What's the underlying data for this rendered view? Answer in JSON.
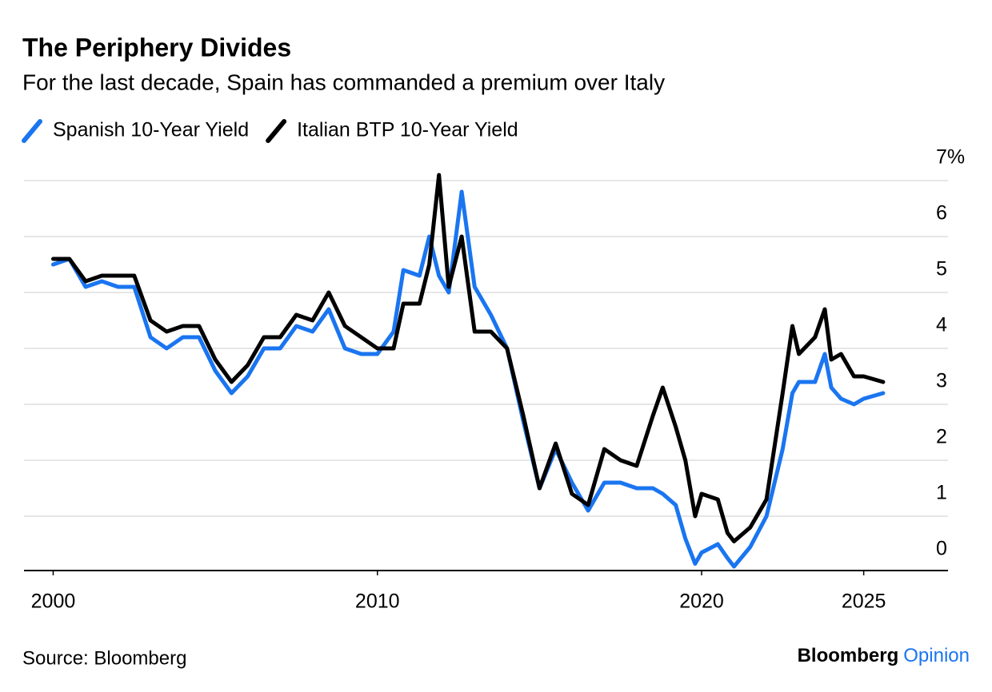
{
  "chart_data": {
    "type": "line",
    "title": "The Periphery Divides",
    "subtitle": "For the last decade, Spain has commanded a premium over Italy",
    "source": "Source: Bloomberg",
    "brand": [
      "Bloomberg",
      "Opinion"
    ],
    "x": [
      2000,
      2000.5,
      2001,
      2001.5,
      2002,
      2002.5,
      2003,
      2003.5,
      2004,
      2004.5,
      2005,
      2005.5,
      2006,
      2006.5,
      2007,
      2007.5,
      2008,
      2008.5,
      2009,
      2009.5,
      2010,
      2010.5,
      2010.8,
      2011.3,
      2011.6,
      2011.9,
      2012.2,
      2012.6,
      2013,
      2013.5,
      2014,
      2014.5,
      2015,
      2015.5,
      2016,
      2016.5,
      2017,
      2017.5,
      2018,
      2018.5,
      2018.8,
      2019.2,
      2019.5,
      2019.8,
      2020,
      2020.5,
      2020.8,
      2021,
      2021.5,
      2022,
      2022.5,
      2022.8,
      2023,
      2023.5,
      2023.8,
      2024,
      2024.3,
      2024.7,
      2025,
      2025.6
    ],
    "series": [
      {
        "name": "Spanish 10-Year Yield",
        "color": "#1a75f0",
        "values": [
          5.5,
          5.6,
          5.1,
          5.2,
          5.1,
          5.1,
          4.2,
          4.0,
          4.2,
          4.2,
          3.6,
          3.2,
          3.5,
          4.0,
          4.0,
          4.4,
          4.3,
          4.7,
          4.0,
          3.9,
          3.9,
          4.3,
          5.4,
          5.3,
          6.0,
          5.3,
          5.0,
          6.8,
          5.1,
          4.6,
          4.0,
          2.7,
          1.5,
          2.2,
          1.6,
          1.1,
          1.6,
          1.6,
          1.5,
          1.5,
          1.4,
          1.2,
          0.6,
          0.15,
          0.35,
          0.5,
          0.25,
          0.1,
          0.45,
          1.0,
          2.2,
          3.2,
          3.4,
          3.4,
          3.9,
          3.3,
          3.1,
          3.0,
          3.1,
          3.2
        ]
      },
      {
        "name": "Italian BTP 10-Year Yield",
        "color": "#000000",
        "values": [
          5.6,
          5.6,
          5.2,
          5.3,
          5.3,
          5.3,
          4.5,
          4.3,
          4.4,
          4.4,
          3.8,
          3.4,
          3.7,
          4.2,
          4.2,
          4.6,
          4.5,
          5.0,
          4.4,
          4.2,
          4.0,
          4.0,
          4.8,
          4.8,
          5.5,
          7.1,
          5.1,
          6.0,
          4.3,
          4.3,
          4.0,
          2.8,
          1.5,
          2.3,
          1.4,
          1.2,
          2.2,
          2.0,
          1.9,
          2.8,
          3.3,
          2.6,
          2.0,
          1.0,
          1.4,
          1.3,
          0.7,
          0.55,
          0.8,
          1.3,
          3.2,
          4.4,
          3.9,
          4.2,
          4.7,
          3.8,
          3.9,
          3.5,
          3.5,
          3.4
        ]
      }
    ],
    "xlim": [
      1999.1,
      2027.6
    ],
    "xticks": [
      2000,
      2010,
      2020,
      2025
    ],
    "ylim": [
      0,
      7
    ],
    "yticks": [
      0,
      1,
      2,
      3,
      4,
      5,
      6,
      {
        "value": 7,
        "label": "7%"
      }
    ],
    "grid": true
  }
}
